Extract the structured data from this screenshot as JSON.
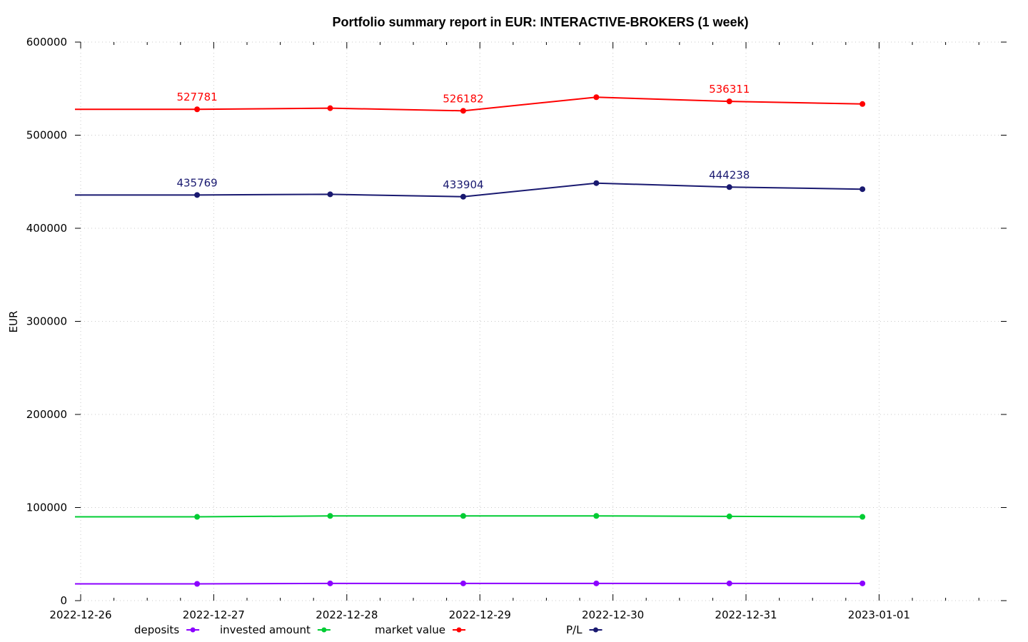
{
  "chart_data": {
    "type": "line",
    "title": "Portfolio summary report in EUR: INTERACTIVE-BROKERS (1 week)",
    "xlabel": "",
    "ylabel": "EUR",
    "xlim": [
      "2022-12-26",
      "2023-01-02"
    ],
    "ylim": [
      0,
      600000
    ],
    "y_ticks": [
      0,
      100000,
      200000,
      300000,
      400000,
      500000,
      600000
    ],
    "x_ticks": [
      "2022-12-26",
      "2022-12-27",
      "2022-12-28",
      "2022-12-29",
      "2022-12-30",
      "2022-12-31",
      "2023-01-01"
    ],
    "x_minor_ticks_per_day": 4,
    "grid": true,
    "legend_position": "bottom",
    "x": [
      "2022-12-26 00:00",
      "2022-12-26 21:00",
      "2022-12-27 21:00",
      "2022-12-28 21:00",
      "2022-12-29 21:00",
      "2022-12-30 21:00",
      "2022-12-31 21:00"
    ],
    "markers_from_index": 1,
    "series": [
      {
        "name": "deposits",
        "color": "#8b00ff",
        "values": [
          18000,
          18000,
          18500,
          18500,
          18500,
          18500,
          18500
        ],
        "labels": [
          null,
          null,
          null,
          null,
          null,
          null,
          null
        ]
      },
      {
        "name": "invested amount",
        "color": "#00cc33",
        "values": [
          90000,
          90000,
          91000,
          91000,
          91000,
          90500,
          90000
        ],
        "labels": [
          null,
          null,
          null,
          null,
          null,
          null,
          null
        ]
      },
      {
        "name": "market value",
        "color": "#ff0000",
        "values": [
          527781,
          527781,
          529000,
          526182,
          540800,
          536311,
          533500
        ],
        "labels": [
          null,
          "527781",
          null,
          "526182",
          null,
          "536311",
          null
        ]
      },
      {
        "name": "P/L",
        "color": "#191970",
        "values": [
          435769,
          435769,
          436500,
          433904,
          448500,
          444238,
          442000
        ],
        "labels": [
          null,
          "435769",
          null,
          "433904",
          null,
          "444238",
          null
        ]
      }
    ]
  }
}
